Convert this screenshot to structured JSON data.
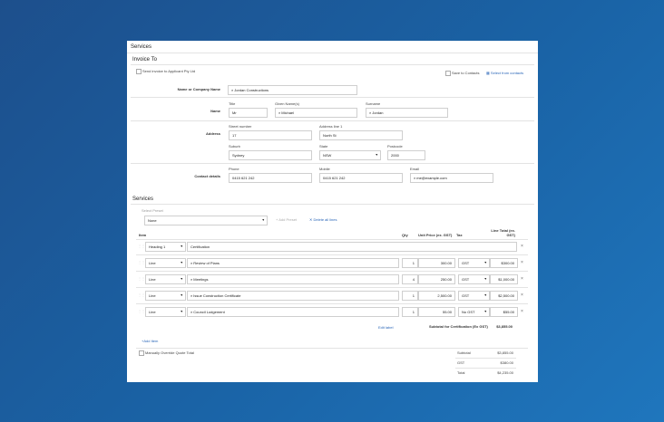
{
  "header": {
    "title": "Services"
  },
  "invoice": {
    "section_title": "Invoice To",
    "send_to_applicant_label": "Send invoice to Applicant Pty Ltd",
    "save_to_contacts_label": "Save to Contacts",
    "select_from_contacts_label": "Select from contacts",
    "name_label": "Name or Company Name",
    "name_value": "Jordan Constructions",
    "name_row_label": "Name",
    "title_label": "Title",
    "title_value": "Mr",
    "given_label": "Given Name(s)",
    "given_value": "Michael",
    "surname_label": "Surname",
    "surname_value": "Jordan",
    "address_row_label": "Address",
    "street_label": "Street number",
    "street_value": "17",
    "address1_label": "Address line 1",
    "address1_value": "North St",
    "suburb_label": "Suburb",
    "suburb_value": "Sydney",
    "state_label": "State",
    "state_value": "NSW",
    "postcode_label": "Postcode",
    "postcode_value": "2000",
    "contact_row_label": "Contact details",
    "phone_label": "Phone",
    "phone_value": "0415 621 242",
    "mobile_label": "Mobile",
    "mobile_value": "0415 621 242",
    "email_label": "Email",
    "email_value": "me@example.com"
  },
  "services": {
    "section_title": "Services",
    "select_preset_label": "Select Preset",
    "preset_value": "None",
    "add_preset_label": "Add Preset",
    "delete_all_label": "Delete all lines",
    "col_item": "Item",
    "col_qty": "Qty",
    "col_unit_price": "Unit Price (ex. GST)",
    "col_tax": "Tax",
    "col_line_total": "Line Total (ex. GST)",
    "rows": [
      {
        "type": "Heading 1",
        "desc": "Certification"
      },
      {
        "type": "Line",
        "desc": "Review of Plans",
        "qty": "1",
        "price": "300.00",
        "tax": "GST",
        "total": "$300.00"
      },
      {
        "type": "Line",
        "desc": "Meetings",
        "qty": "4",
        "price": "250.00",
        "tax": "GST",
        "total": "$1,000.00"
      },
      {
        "type": "Line",
        "desc": "Issue Construction Certificate",
        "qty": "1",
        "price": "2,500.00",
        "tax": "GST",
        "total": "$2,500.00"
      },
      {
        "type": "Line",
        "desc": "Council Lodgement",
        "qty": "1",
        "price": "55.00",
        "tax": "No GST",
        "total": "$55.00"
      }
    ],
    "edit_label": "Edit label",
    "subtotal_cert_label": "Subtotal for Certification (Ex GST)",
    "subtotal_cert_value": "$3,855.00",
    "add_item_label": "Add Item",
    "override_label": "Manually Override Quote Total",
    "subtotal_label": "Subtotal",
    "subtotal_value": "$3,855.00",
    "gst_label": "GST",
    "gst_value": "$380.00",
    "total_label": "Total",
    "total_value": "$4,235.00"
  },
  "colors": {
    "background": "#1a63a6",
    "link": "#2a66b8"
  },
  "icons": [
    "search-icon",
    "contacts-icon",
    "plus-icon",
    "close-icon",
    "chevron-down-icon",
    "drag-handle-icon"
  ]
}
